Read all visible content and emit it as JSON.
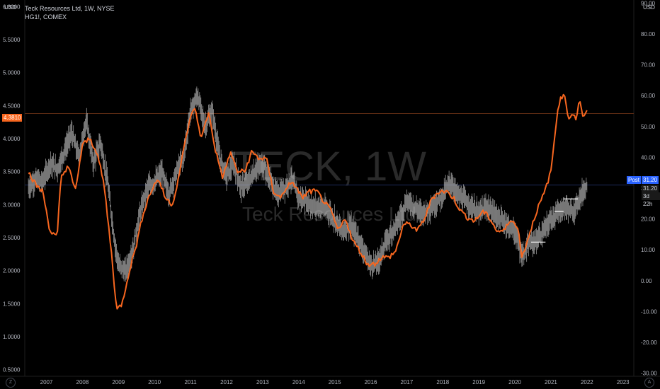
{
  "header": {
    "left_unit": "USD",
    "right_unit": "USD",
    "main_symbol": "Teck Resources Ltd, 1W, NYSE",
    "compare_symbol": "HG1!, COMEX"
  },
  "watermark": {
    "symbol": "TECK, 1W",
    "name": "Teck Resources Ltd"
  },
  "price_tags": {
    "left_copper": "4.3810",
    "right_post_label": "Post",
    "right_post_value": "31.20",
    "right_last_value": "31.20",
    "right_countdown": "3d 22h"
  },
  "corner_buttons": {
    "left": "Z",
    "right": "A"
  },
  "colors": {
    "background": "#000000",
    "copper_line": "#f7661f",
    "teck_bars": "#c8c8c8",
    "left_tag": "#f7661f",
    "post_tag": "#2962ff",
    "copper_hline": "#5a2a12",
    "teck_hline": "#1c2a5a"
  },
  "chart_data": [
    {
      "type": "line",
      "series": [
        {
          "name": "HG1!, COMEX",
          "x": [
            2006.5,
            2006.7,
            2006.9,
            2007.1,
            2007.3,
            2007.4,
            2007.6,
            2007.8,
            2008.0,
            2008.2,
            2008.4,
            2008.6,
            2008.8,
            2008.95,
            2009.1,
            2009.3,
            2009.5,
            2009.7,
            2009.9,
            2010.1,
            2010.3,
            2010.5,
            2010.7,
            2010.9,
            2011.1,
            2011.3,
            2011.5,
            2011.7,
            2011.9,
            2012.1,
            2012.3,
            2012.5,
            2012.7,
            2012.9,
            2013.1,
            2013.3,
            2013.5,
            2013.7,
            2013.9,
            2014.1,
            2014.3,
            2014.5,
            2014.7,
            2014.9,
            2015.1,
            2015.3,
            2015.5,
            2015.7,
            2015.9,
            2016.1,
            2016.3,
            2016.5,
            2016.7,
            2016.9,
            2017.1,
            2017.3,
            2017.5,
            2017.7,
            2017.9,
            2018.1,
            2018.3,
            2018.5,
            2018.7,
            2018.9,
            2019.1,
            2019.3,
            2019.5,
            2019.7,
            2019.9,
            2020.1,
            2020.2,
            2020.4,
            2020.6,
            2020.8,
            2021.0,
            2021.2,
            2021.35,
            2021.5,
            2021.6,
            2021.7,
            2021.8,
            2021.9,
            2022.0
          ],
          "y": [
            3.5,
            3.3,
            3.2,
            2.6,
            2.5,
            3.4,
            3.6,
            3.2,
            3.9,
            4.0,
            3.8,
            3.3,
            2.3,
            1.4,
            1.5,
            2.0,
            2.4,
            2.9,
            3.2,
            3.4,
            3.1,
            3.0,
            3.5,
            4.1,
            4.5,
            4.0,
            4.4,
            3.8,
            3.4,
            3.8,
            3.5,
            3.5,
            3.8,
            3.7,
            3.7,
            3.2,
            3.1,
            3.3,
            3.3,
            3.1,
            3.2,
            3.2,
            3.05,
            2.9,
            2.6,
            2.8,
            2.45,
            2.3,
            2.1,
            2.1,
            2.2,
            2.2,
            2.3,
            2.7,
            2.7,
            2.6,
            2.8,
            3.1,
            3.2,
            3.2,
            3.1,
            2.9,
            2.8,
            2.75,
            2.9,
            2.8,
            2.6,
            2.6,
            2.8,
            2.6,
            2.2,
            2.55,
            2.9,
            3.15,
            3.5,
            4.5,
            4.7,
            4.3,
            4.4,
            4.3,
            4.6,
            4.3,
            4.4
          ]
        },
        {
          "name": "Teck Resources Ltd, 1W, NYSE",
          "x": [
            2006.5,
            2006.7,
            2006.9,
            2007.1,
            2007.3,
            2007.5,
            2007.7,
            2007.9,
            2008.1,
            2008.3,
            2008.5,
            2008.7,
            2008.9,
            2009.0,
            2009.2,
            2009.4,
            2009.6,
            2009.8,
            2010.0,
            2010.2,
            2010.4,
            2010.6,
            2010.8,
            2011.0,
            2011.2,
            2011.4,
            2011.6,
            2011.8,
            2012.0,
            2012.2,
            2012.4,
            2012.6,
            2012.8,
            2013.0,
            2013.2,
            2013.4,
            2013.6,
            2013.8,
            2014.0,
            2014.2,
            2014.4,
            2014.6,
            2014.8,
            2015.0,
            2015.2,
            2015.4,
            2015.6,
            2015.8,
            2016.0,
            2016.2,
            2016.4,
            2016.6,
            2016.8,
            2017.0,
            2017.2,
            2017.4,
            2017.6,
            2017.8,
            2018.0,
            2018.2,
            2018.4,
            2018.6,
            2018.8,
            2019.0,
            2019.2,
            2019.4,
            2019.6,
            2019.8,
            2020.0,
            2020.2,
            2020.4,
            2020.6,
            2020.8,
            2021.0,
            2021.2,
            2021.4,
            2021.6,
            2021.8,
            2022.0
          ],
          "y": [
            30,
            33,
            32,
            38,
            36,
            42,
            48,
            40,
            52,
            38,
            45,
            32,
            12,
            5,
            3,
            10,
            22,
            30,
            32,
            35,
            28,
            35,
            40,
            55,
            60,
            50,
            55,
            40,
            34,
            38,
            30,
            32,
            36,
            38,
            33,
            28,
            30,
            33,
            27,
            26,
            24,
            24,
            23,
            20,
            16,
            18,
            15,
            10,
            5,
            6,
            12,
            16,
            20,
            26,
            24,
            22,
            23,
            25,
            28,
            32,
            28,
            26,
            24,
            22,
            24,
            22,
            20,
            18,
            16,
            8,
            12,
            13,
            16,
            20,
            22,
            24,
            22,
            27,
            31
          ]
        }
      ],
      "left_axis": {
        "ticks": [
          "0.5000",
          "1.0000",
          "1.5000",
          "2.0000",
          "2.5000",
          "3.0000",
          "3.5000",
          "4.0000",
          "4.5000",
          "5.0000",
          "5.5000",
          "6.0000"
        ],
        "range": [
          0.4,
          6.1
        ]
      },
      "right_axis": {
        "ticks": [
          "-30.00",
          "-20.00",
          "-10.00",
          "0.00",
          "10.00",
          "20.00",
          "30.00",
          "40.00",
          "50.00",
          "60.00",
          "70.00",
          "80.00",
          "90.00"
        ],
        "range": [
          -31,
          91
        ]
      },
      "x_axis": {
        "ticks": [
          "2007",
          "2008",
          "2009",
          "2010",
          "2011",
          "2012",
          "2013",
          "2014",
          "2015",
          "2016",
          "2017",
          "2018",
          "2019",
          "2020",
          "2021",
          "2022",
          "2023"
        ],
        "range": [
          2006.4,
          2023.3
        ]
      },
      "grid": false
    }
  ]
}
